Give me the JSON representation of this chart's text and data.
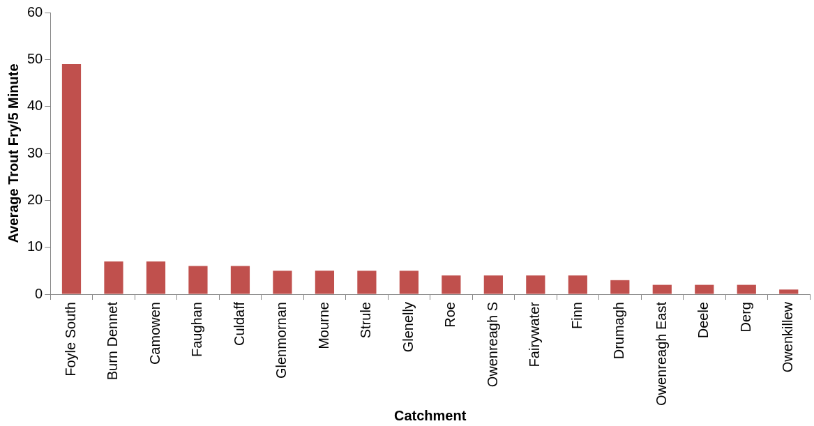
{
  "chart_data": {
    "type": "bar",
    "xlabel": "Catchment",
    "ylabel": "Average Trout Fry/5 Minute",
    "categories": [
      "Foyle South",
      "Burn Dennet",
      "Camowen",
      "Faughan",
      "Culdaff",
      "Glenmornan",
      "Mourne",
      "Strule",
      "Glenelly",
      "Roe",
      "Owenreagh S",
      "Fairywater",
      "Finn",
      "Drumagh",
      "Owenreagh East",
      "Deele",
      "Derg",
      "Owenkillew"
    ],
    "values": [
      49,
      7,
      7,
      6,
      6,
      5,
      5,
      5,
      5,
      4,
      4,
      4,
      4,
      3,
      2,
      2,
      2,
      1
    ],
    "color": "#c0504d",
    "ylim": [
      0,
      60
    ],
    "yticks": [
      0,
      10,
      20,
      30,
      40,
      50,
      60
    ],
    "grid": false,
    "legend": false
  }
}
